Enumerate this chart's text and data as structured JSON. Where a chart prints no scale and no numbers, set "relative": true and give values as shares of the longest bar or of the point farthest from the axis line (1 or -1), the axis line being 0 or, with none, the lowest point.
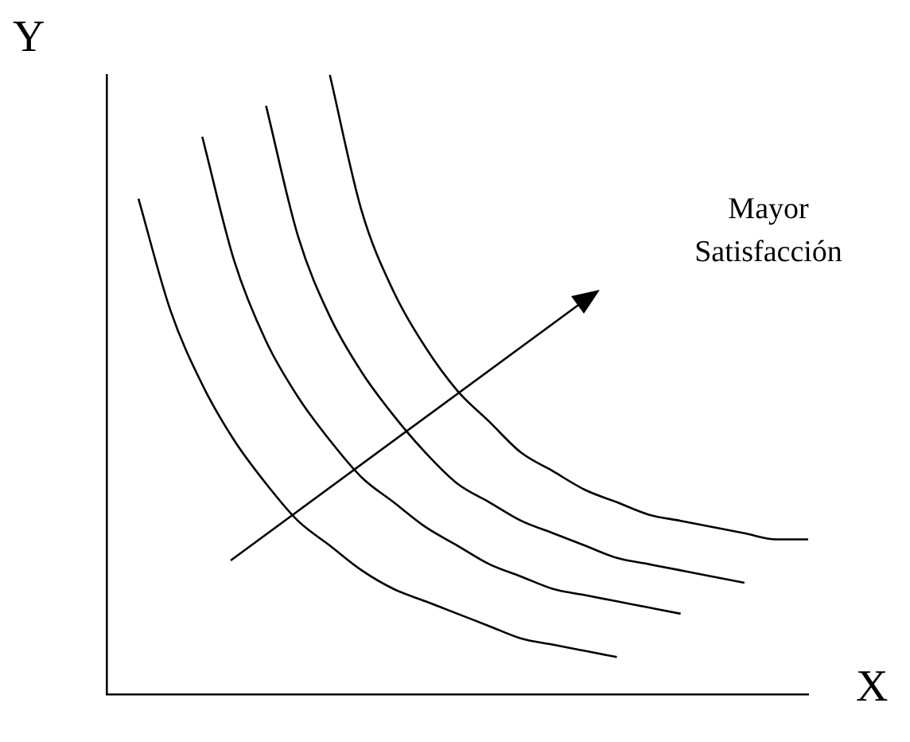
{
  "chart_data": {
    "type": "line",
    "relative": true,
    "xlabel": "X",
    "ylabel": "Y",
    "annotations": [
      "Mayor Satisfacción"
    ],
    "categories": [
      null,
      null,
      null,
      null,
      null,
      null,
      null,
      null,
      null,
      null,
      null,
      null,
      null,
      null,
      null,
      null,
      null,
      null,
      null,
      null,
      null,
      null,
      null
    ],
    "series": [
      {
        "color": "#000000",
        "values": [
          null,
          0.8,
          0.62,
          0.5,
          0.41,
          0.34,
          0.28,
          0.24,
          0.2,
          0.17,
          0.15,
          0.13,
          0.11,
          0.09,
          0.08,
          0.07,
          0.06,
          null,
          null,
          null,
          null,
          null,
          null
        ]
      },
      {
        "color": "#000000",
        "values": [
          null,
          null,
          null,
          0.9,
          0.7,
          0.57,
          0.48,
          0.41,
          0.35,
          0.31,
          0.27,
          0.24,
          0.21,
          0.19,
          0.17,
          0.16,
          0.15,
          0.14,
          0.13,
          null,
          null,
          null,
          null
        ]
      },
      {
        "color": "#000000",
        "values": [
          null,
          null,
          null,
          null,
          null,
          0.95,
          0.74,
          0.61,
          0.52,
          0.45,
          0.39,
          0.34,
          0.31,
          0.28,
          0.26,
          0.24,
          0.22,
          0.21,
          0.2,
          0.19,
          0.18,
          null,
          null
        ]
      },
      {
        "color": "#000000",
        "values": [
          null,
          null,
          null,
          null,
          null,
          null,
          null,
          1,
          0.78,
          0.65,
          0.56,
          0.49,
          0.44,
          0.39,
          0.36,
          0.33,
          0.31,
          0.29,
          0.28,
          0.27,
          0.26,
          0.25,
          0.25
        ]
      }
    ]
  }
}
